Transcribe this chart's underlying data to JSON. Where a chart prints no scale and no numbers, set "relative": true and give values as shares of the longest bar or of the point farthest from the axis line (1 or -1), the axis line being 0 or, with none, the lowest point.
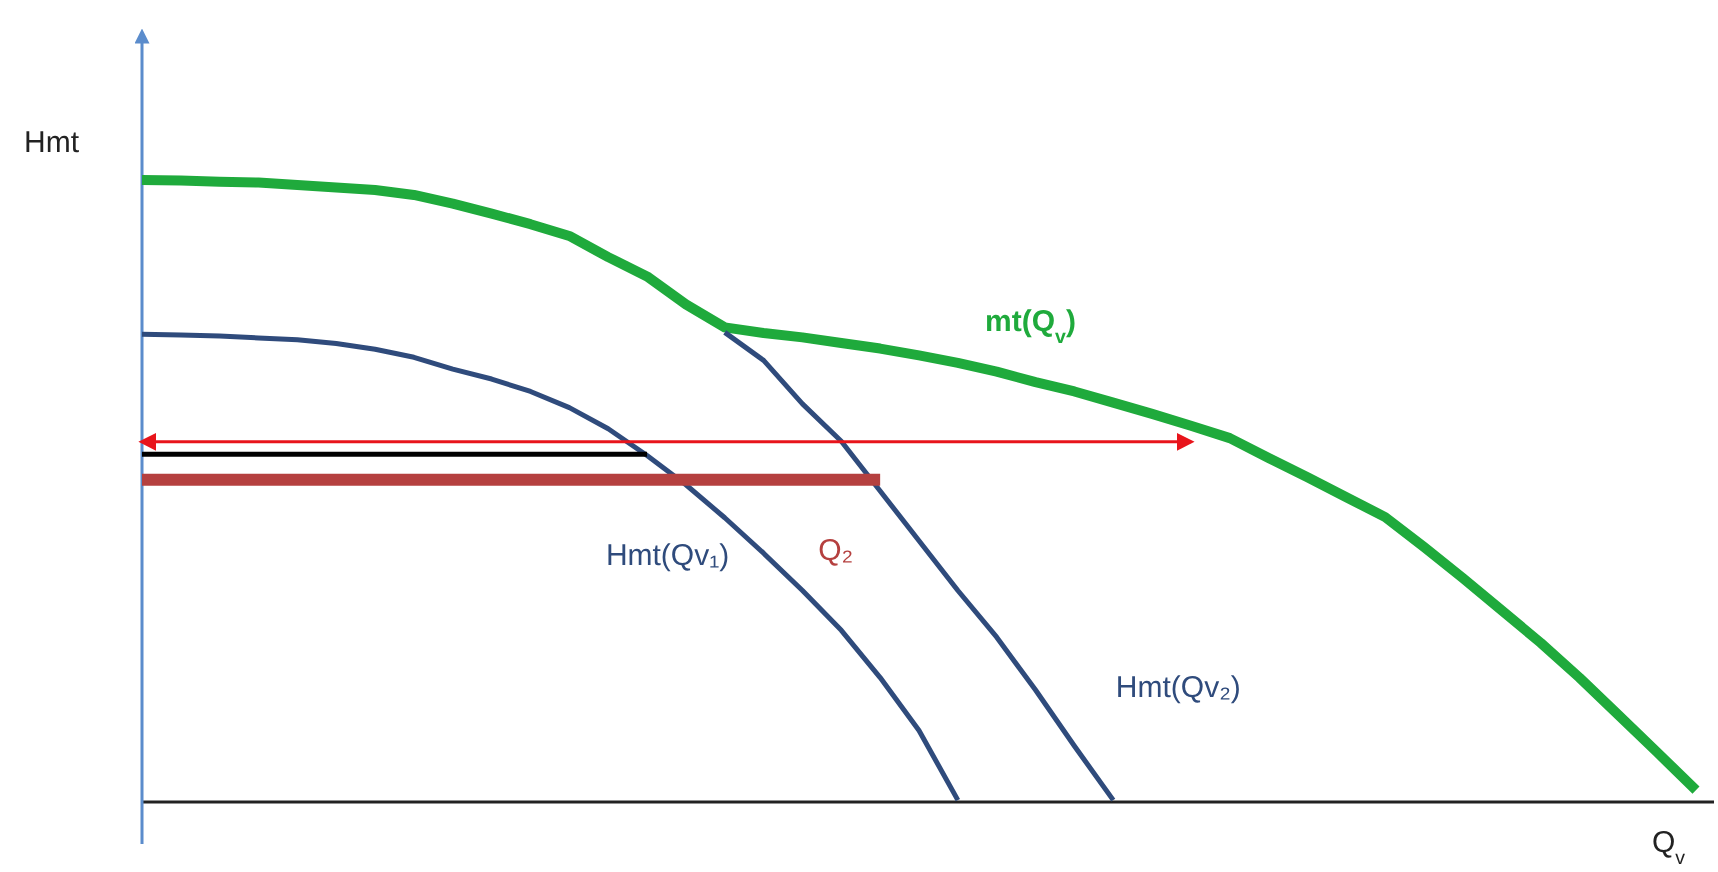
{
  "chart_data": {
    "type": "line",
    "relative": true,
    "xlabel": "Q$_{v}$",
    "ylabel": "Hmt",
    "marker": "none",
    "line_style": "solid",
    "categories": [
      null,
      null,
      null,
      null,
      null,
      null,
      null,
      null,
      null,
      null,
      null,
      null,
      null,
      null,
      null,
      null,
      null,
      null,
      null,
      null,
      null,
      null,
      null,
      null,
      null,
      null,
      null,
      null,
      null,
      null,
      null,
      null,
      null,
      null,
      null,
      null,
      null,
      null,
      null,
      null,
      null
    ],
    "series": [
      {
        "name": "mt(Q$_{v}$)",
        "color": "#1faa3c",
        "values": [
          1.0,
          0.999,
          0.997,
          0.996,
          0.992,
          0.988,
          0.984,
          0.976,
          0.962,
          0.946,
          0.929,
          0.91,
          0.876,
          0.845,
          0.8,
          0.763,
          0.754,
          0.747,
          0.738,
          0.729,
          0.718,
          0.706,
          0.692,
          0.675,
          0.66,
          0.642,
          0.624,
          0.605,
          0.585,
          0.553,
          0.522,
          0.49,
          0.458,
          0.41,
          0.36,
          0.308,
          0.256,
          0.2,
          0.14,
          0.08,
          0.019
        ]
      },
      {
        "name": "Hmt(Qv₁)",
        "color": "#2f4b7c",
        "values": [
          0.752,
          0.751,
          0.749,
          0.746,
          0.743,
          0.737,
          0.728,
          0.715,
          0.696,
          0.68,
          0.66,
          0.634,
          0.6,
          0.557,
          0.51,
          0.457,
          0.4,
          0.34,
          0.276,
          0.2,
          0.115,
          0.003,
          null,
          null,
          null,
          null,
          null,
          null,
          null,
          null,
          null,
          null,
          null,
          null,
          null,
          null,
          null,
          null,
          null,
          null,
          null
        ]
      },
      {
        "name": "Hmt(Qv₂)",
        "color": "#2f4b7c",
        "values": [
          null,
          null,
          null,
          null,
          null,
          null,
          null,
          null,
          null,
          null,
          null,
          null,
          null,
          null,
          null,
          0.755,
          0.71,
          0.64,
          0.58,
          0.5,
          0.42,
          0.34,
          0.265,
          0.18,
          0.09,
          0.003,
          null,
          null,
          null,
          null,
          null,
          null,
          null,
          null,
          null,
          null,
          null,
          null,
          null,
          null,
          null
        ]
      },
      {
        "color": "#000000",
        "values": [
          0.559,
          0.559,
          0.559,
          0.559,
          0.559,
          0.559,
          0.559,
          0.559,
          0.559,
          0.559,
          0.559,
          0.559,
          0.559,
          0.559,
          null,
          null,
          null,
          null,
          null,
          null,
          null,
          null,
          null,
          null,
          null,
          null,
          null,
          null,
          null,
          null,
          null,
          null,
          null,
          null,
          null,
          null,
          null,
          null,
          null,
          null,
          null
        ]
      },
      {
        "name": "Q₂",
        "color": "#b5403f",
        "values": [
          0.518,
          0.518,
          0.518,
          0.518,
          0.518,
          0.518,
          0.518,
          0.518,
          0.518,
          0.518,
          0.518,
          0.518,
          0.518,
          0.518,
          0.518,
          0.518,
          0.518,
          0.518,
          0.518,
          0.518,
          null,
          null,
          null,
          null,
          null,
          null,
          null,
          null,
          null,
          null,
          null,
          null,
          null,
          null,
          null,
          null,
          null,
          null,
          null,
          null,
          null
        ]
      },
      {
        "color": "#e8141b",
        "values": [
          0.579,
          0.579,
          0.579,
          0.579,
          0.579,
          0.579,
          0.579,
          0.579,
          0.579,
          0.579,
          0.579,
          0.579,
          0.579,
          0.579,
          0.579,
          0.579,
          0.579,
          0.579,
          0.579,
          0.579,
          0.579,
          0.579,
          0.579,
          0.579,
          0.579,
          0.579,
          0.579,
          0.579,
          null,
          null,
          null,
          null,
          null,
          null,
          null,
          null,
          null,
          null,
          null,
          null,
          null
        ]
      }
    ]
  }
}
